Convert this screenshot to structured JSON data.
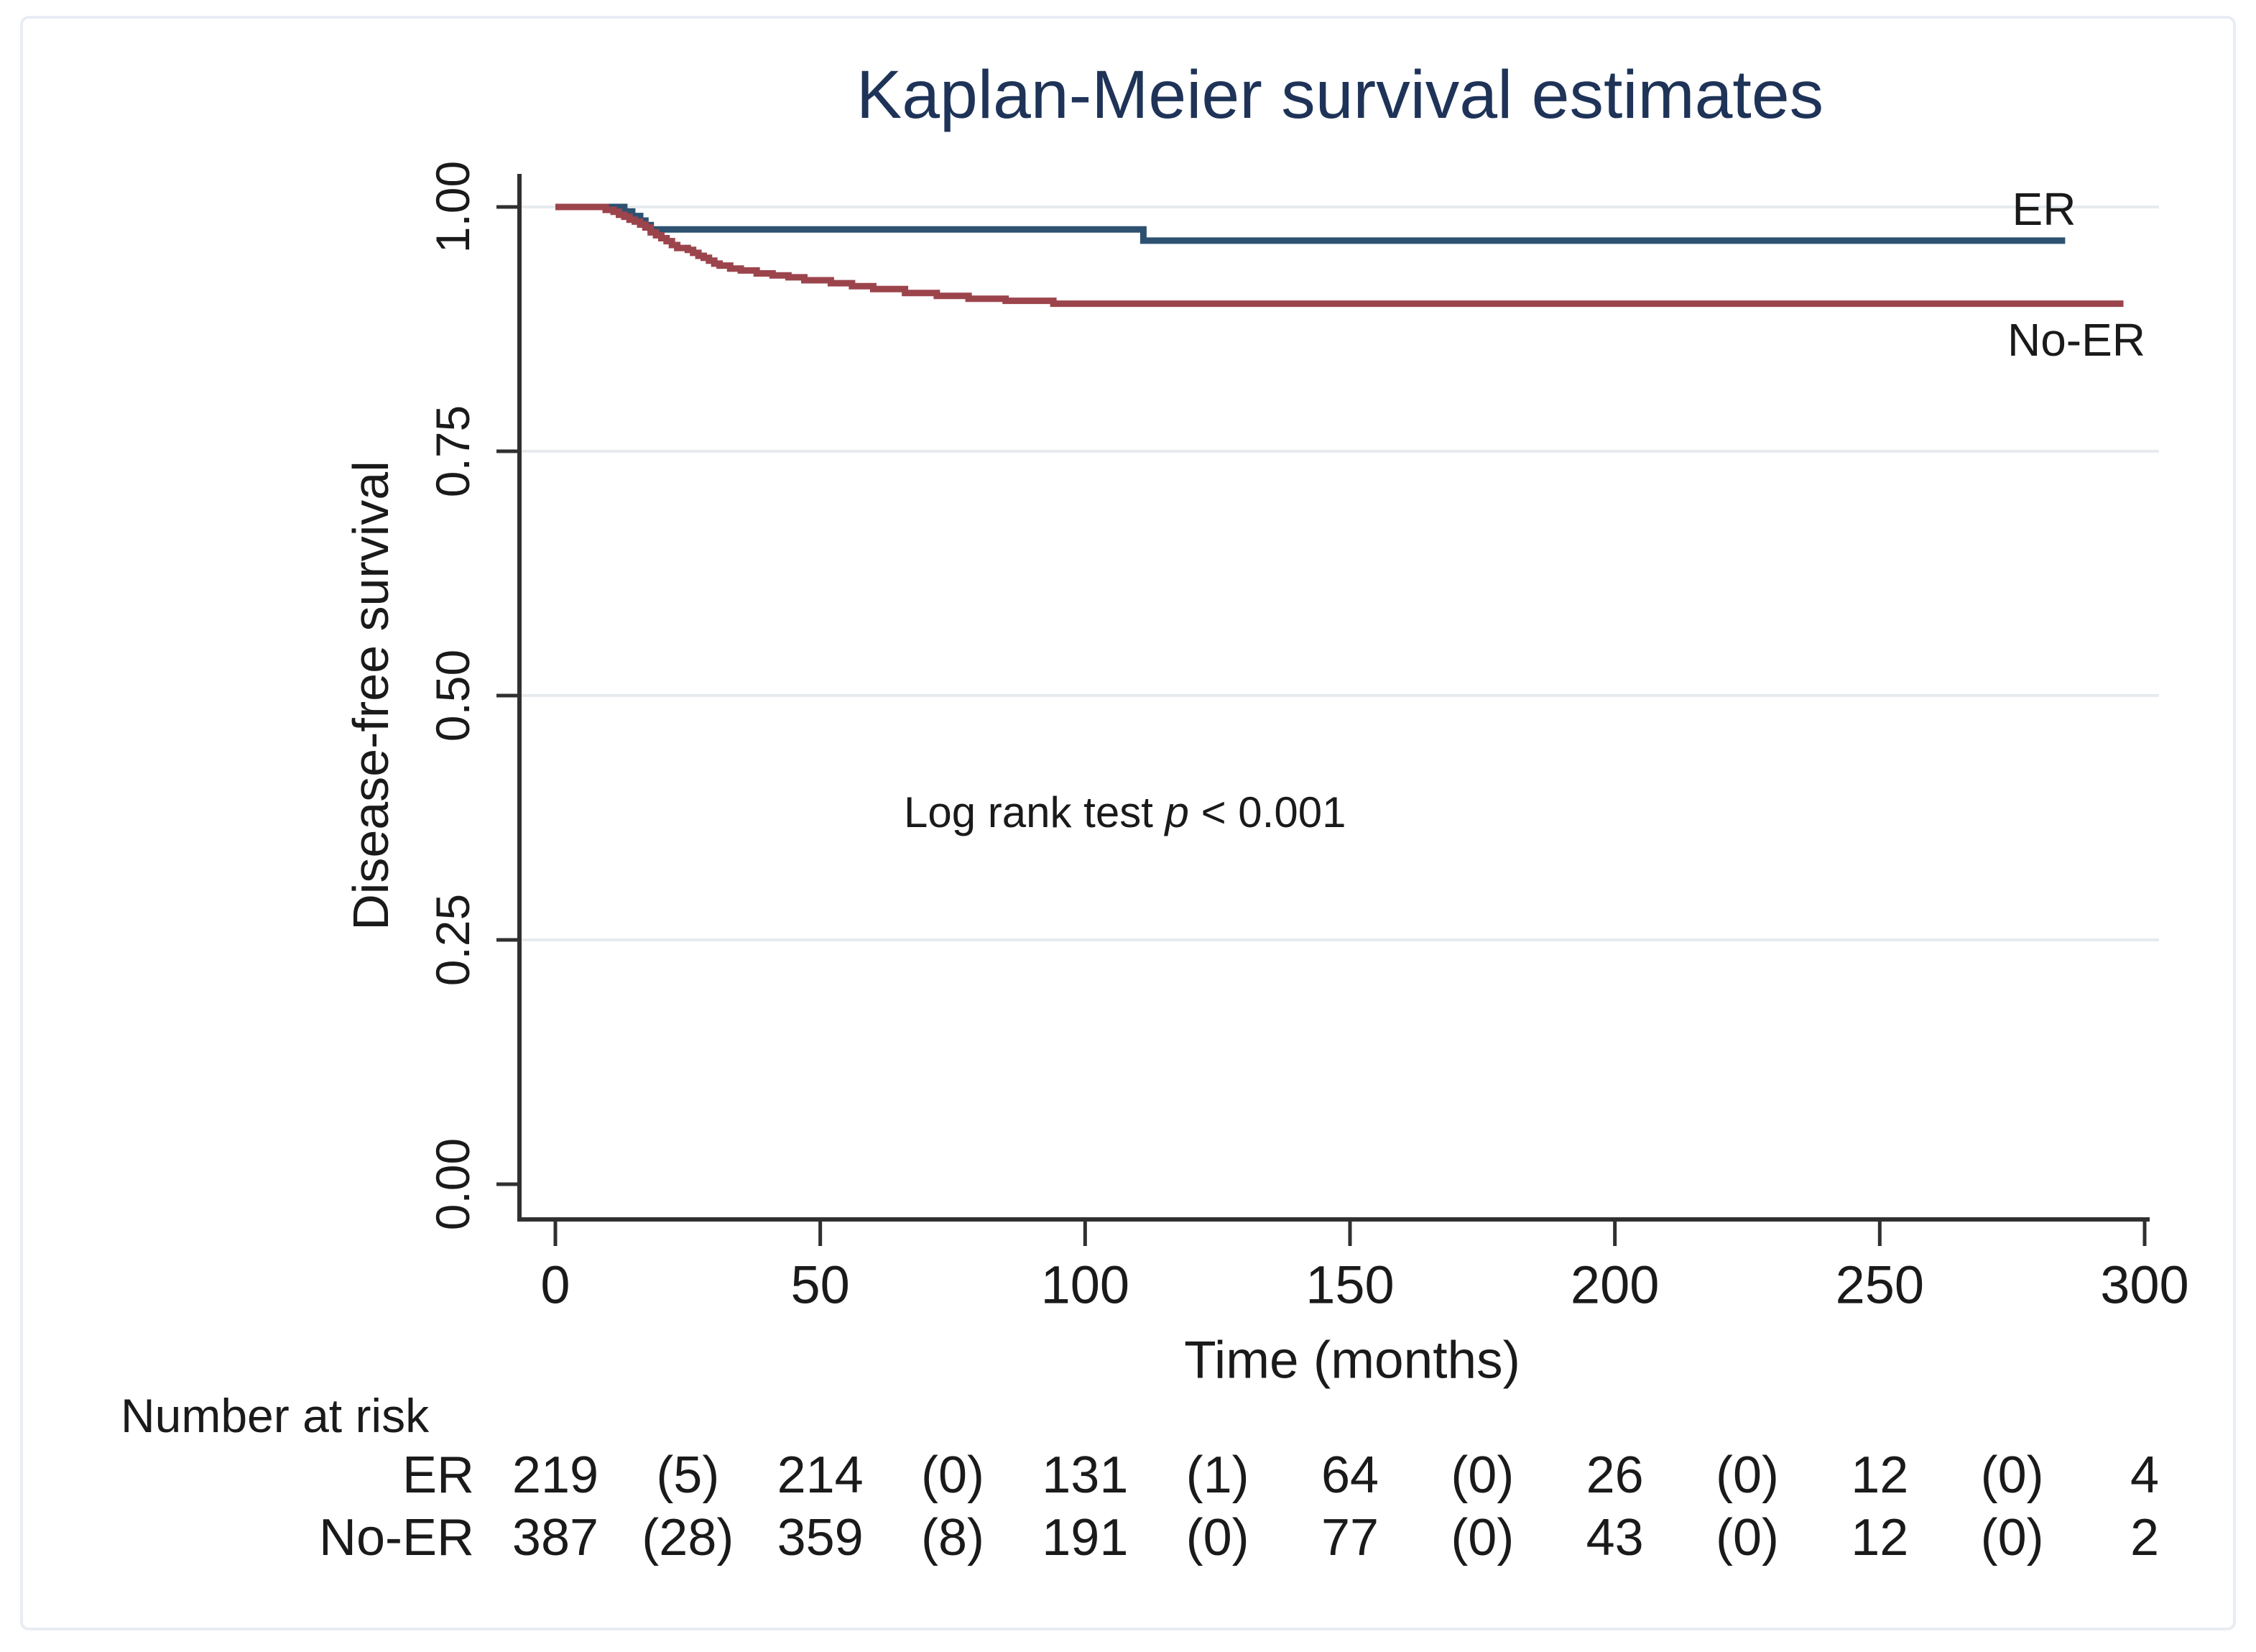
{
  "figure": {
    "background": "#ffffff",
    "border_color": "#e8edf4"
  },
  "chart_data": {
    "type": "line",
    "chart_kind": "kaplan-meier-step",
    "title": "Kaplan-Meier survival estimates",
    "title_color": "#1e3357",
    "xlabel": "Time (months)",
    "ylabel": "Disease-free survival",
    "xlim": [
      0,
      300
    ],
    "ylim": [
      0.0,
      1.0
    ],
    "xticks": [
      0,
      50,
      100,
      150,
      200,
      250,
      300
    ],
    "ytick_values": [
      0.0,
      0.25,
      0.5,
      0.75,
      1.0
    ],
    "ytick_labels": [
      "0.00",
      "0.25",
      "0.50",
      "0.75",
      "1.00"
    ],
    "grid": {
      "horizontal_at": [
        0.25,
        0.5,
        0.75,
        1.0
      ],
      "color": "#e7eaee",
      "visible": true
    },
    "axis_color": "#303030",
    "text_color": "#1a1a1a",
    "legend_position": "labels at right end of each line",
    "annotation": {
      "prefix": "Log rank test ",
      "p_symbol": "p",
      "suffix": " < 0.001"
    },
    "series": [
      {
        "name": "ER",
        "label": "ER",
        "color": "#2d5170",
        "end_x": 285,
        "steps": [
          [
            0,
            1.0
          ],
          [
            13,
            0.9953
          ],
          [
            14.5,
            0.9907
          ],
          [
            16,
            0.986
          ],
          [
            17,
            0.9814
          ],
          [
            18,
            0.977
          ],
          [
            111,
            0.9655
          ]
        ]
      },
      {
        "name": "No-ER",
        "label": "No-ER",
        "color": "#9c444c",
        "end_x": 296,
        "steps": [
          [
            0,
            1.0
          ],
          [
            9.5,
            0.997
          ],
          [
            11,
            0.995
          ],
          [
            12,
            0.992
          ],
          [
            13,
            0.99
          ],
          [
            14,
            0.987
          ],
          [
            15,
            0.985
          ],
          [
            16,
            0.982
          ],
          [
            17,
            0.979
          ],
          [
            18,
            0.974
          ],
          [
            19,
            0.971
          ],
          [
            20,
            0.968
          ],
          [
            21,
            0.965
          ],
          [
            22,
            0.961
          ],
          [
            23,
            0.958
          ],
          [
            25,
            0.956
          ],
          [
            26,
            0.953
          ],
          [
            27,
            0.95
          ],
          [
            28,
            0.948
          ],
          [
            29,
            0.945
          ],
          [
            30,
            0.942
          ],
          [
            31,
            0.94
          ],
          [
            33,
            0.937
          ],
          [
            35,
            0.935
          ],
          [
            38,
            0.932
          ],
          [
            41,
            0.93
          ],
          [
            44,
            0.928
          ],
          [
            47,
            0.925
          ],
          [
            52,
            0.922
          ],
          [
            56,
            0.919
          ],
          [
            60,
            0.916
          ],
          [
            66,
            0.912
          ],
          [
            72,
            0.909
          ],
          [
            78,
            0.906
          ],
          [
            85,
            0.904
          ],
          [
            94,
            0.901
          ]
        ]
      }
    ]
  },
  "risk_table": {
    "header": "Number at risk",
    "column_months": [
      0,
      25,
      50,
      75,
      100,
      125,
      150,
      175,
      200,
      225,
      250,
      275,
      300
    ],
    "rows": [
      {
        "label": "ER",
        "values": [
          "219",
          "(5)",
          "214",
          "(0)",
          "131",
          "(1)",
          "64",
          "(0)",
          "26",
          "(0)",
          "12",
          "(0)",
          "4"
        ]
      },
      {
        "label": "No-ER",
        "values": [
          "387",
          "(28)",
          "359",
          "(8)",
          "191",
          "(0)",
          "77",
          "(0)",
          "43",
          "(0)",
          "12",
          "(0)",
          "2"
        ]
      }
    ]
  }
}
